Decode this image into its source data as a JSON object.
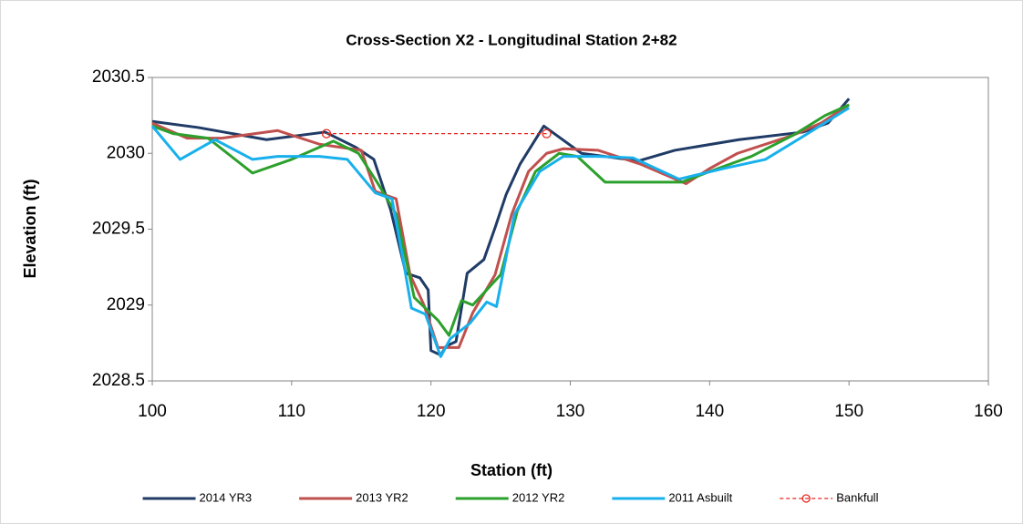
{
  "chart_data": {
    "type": "line",
    "title": "Cross-Section X2 - Longitudinal Station 2+82",
    "x_label": "Station (ft)",
    "y_label": "Elevation (ft)",
    "xlim": [
      100,
      160
    ],
    "xticks": [
      100,
      110,
      120,
      130,
      140,
      150,
      160
    ],
    "ylim": [
      2028.5,
      2030.5
    ],
    "yticks": [
      2028.5,
      2029,
      2029.5,
      2030,
      2030.5
    ],
    "grid": false,
    "legend": "bottom",
    "series": [
      {
        "name": "2014 YR3",
        "color": "#1f3b66",
        "style": "solid",
        "x": [
          100,
          103.3,
          108.2,
          112.4,
          114.6,
          115.9,
          117.1,
          118.2,
          119.2,
          119.8,
          120,
          120.7,
          121.1,
          121.8,
          122.6,
          123.8,
          124.6,
          125.4,
          126.4,
          128.1,
          130.8,
          134.9,
          137.5,
          142.1,
          146.7,
          148.5,
          150
        ],
        "values": [
          2030.21,
          2030.17,
          2030.09,
          2030.14,
          2030.04,
          2029.96,
          2029.63,
          2029.21,
          2029.18,
          2029.1,
          2028.7,
          2028.67,
          2028.73,
          2028.76,
          2029.21,
          2029.3,
          2029.51,
          2029.73,
          2029.93,
          2030.18,
          2030,
          2029.95,
          2030.02,
          2030.09,
          2030.14,
          2030.2,
          2030.36
        ]
      },
      {
        "name": "2013 YR2",
        "color": "#c0504d",
        "style": "solid",
        "x": [
          100,
          102.5,
          105,
          109,
          112,
          113.5,
          115,
          116,
          117.5,
          118.5,
          119.5,
          120.5,
          121.5,
          122,
          123,
          124.6,
          125.8,
          127,
          128.3,
          129.5,
          132,
          135,
          138.3,
          140,
          142,
          146,
          148,
          150
        ],
        "values": [
          2030.2,
          2030.1,
          2030.1,
          2030.15,
          2030.06,
          2030.04,
          2030.02,
          2029.75,
          2029.7,
          2029.2,
          2029,
          2028.72,
          2028.72,
          2028.72,
          2028.95,
          2029.2,
          2029.6,
          2029.88,
          2030,
          2030.03,
          2030.02,
          2029.93,
          2029.8,
          2029.9,
          2030,
          2030.12,
          2030.2,
          2030.32
        ]
      },
      {
        "name": "2012 YR2",
        "color": "#2ca02c",
        "style": "solid",
        "x": [
          100,
          101.5,
          104,
          107.2,
          110,
          113,
          114.8,
          116.2,
          117.5,
          118.8,
          120.5,
          121.3,
          122.2,
          123,
          125,
          126.2,
          127.5,
          129.2,
          130.5,
          132.5,
          135,
          138,
          140,
          143,
          146,
          148.3,
          150
        ],
        "values": [
          2030.18,
          2030.13,
          2030.1,
          2029.87,
          2029.96,
          2030.08,
          2030,
          2029.8,
          2029.6,
          2029.05,
          2028.9,
          2028.8,
          2029.03,
          2029,
          2029.2,
          2029.62,
          2029.88,
          2030,
          2029.98,
          2029.81,
          2029.81,
          2029.81,
          2029.88,
          2029.98,
          2030.12,
          2030.25,
          2030.32
        ]
      },
      {
        "name": "2011 Asbuilt",
        "color": "#18b0ec",
        "style": "solid",
        "x": [
          100,
          102,
          104.5,
          107.2,
          109,
          112,
          114,
          116,
          117.2,
          118,
          118.6,
          119.6,
          120.7,
          121.4,
          122.8,
          124,
          124.7,
          126,
          127.8,
          129.5,
          132,
          134.5,
          137.8,
          141,
          144,
          146.5,
          150
        ],
        "values": [
          2030.18,
          2029.96,
          2030.09,
          2029.96,
          2029.98,
          2029.98,
          2029.96,
          2029.74,
          2029.7,
          2029.3,
          2028.98,
          2028.94,
          2028.66,
          2028.78,
          2028.88,
          2029.02,
          2028.99,
          2029.6,
          2029.88,
          2029.98,
          2029.98,
          2029.97,
          2029.83,
          2029.9,
          2029.96,
          2030.1,
          2030.3
        ]
      },
      {
        "name": "Bankfull",
        "color": "#e8261f",
        "style": "dashed",
        "marker": "circle",
        "x": [
          112.5,
          128.3
        ],
        "values": [
          2030.13,
          2030.13
        ]
      }
    ]
  }
}
